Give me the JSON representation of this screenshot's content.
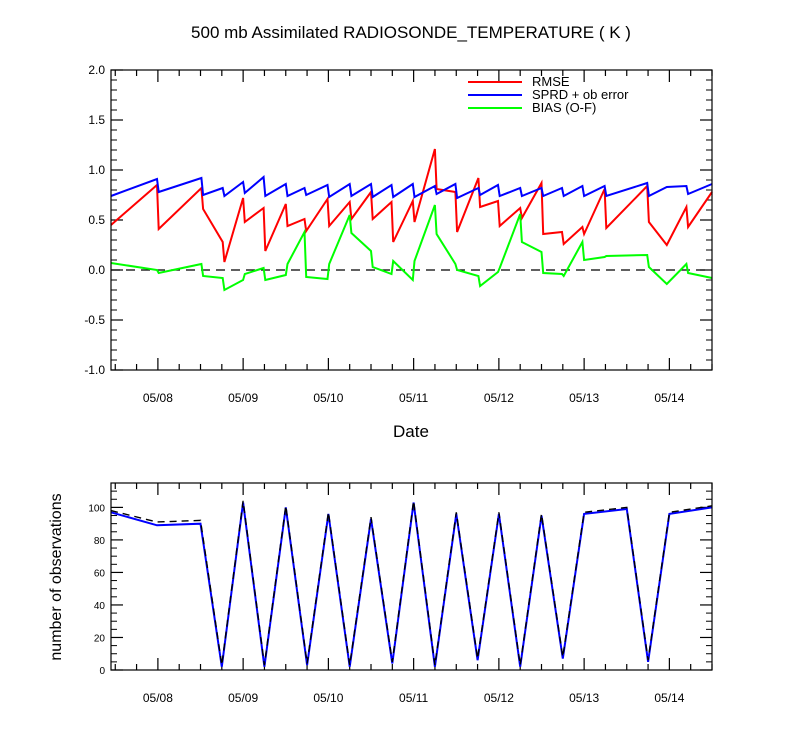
{
  "chart_data": [
    {
      "type": "line",
      "title": "500 mb Assimilated RADIOSONDE_TEMPERATURE ( K )",
      "xlabel": "Date",
      "ylabel": "",
      "xlim": [
        7.45,
        14.5
      ],
      "ylim": [
        -1.0,
        2.0
      ],
      "yticks": [
        -1.0,
        -0.5,
        0.0,
        0.5,
        1.0,
        1.5,
        2.0
      ],
      "ytick_labels": [
        "-1.0",
        "-0.5",
        "0.0",
        "0.5",
        "1.0",
        "1.5",
        "2.0"
      ],
      "xticks": [
        8,
        9,
        10,
        11,
        12,
        13,
        14
      ],
      "xtick_labels": [
        "05/08",
        "05/09",
        "05/10",
        "05/11",
        "05/12",
        "05/13",
        "05/14"
      ],
      "zero_line": "dashed",
      "legend": "top-right",
      "series": [
        {
          "name": "RMSE",
          "color": "#ff0000",
          "points": [
            [
              7.45,
              0.45
            ],
            [
              7.99,
              0.85
            ],
            [
              8.01,
              0.41
            ],
            [
              8.51,
              0.82
            ],
            [
              8.53,
              0.61
            ],
            [
              8.76,
              0.28
            ],
            [
              8.78,
              0.08
            ],
            [
              9.0,
              0.72
            ],
            [
              9.02,
              0.48
            ],
            [
              9.24,
              0.62
            ],
            [
              9.26,
              0.19
            ],
            [
              9.5,
              0.66
            ],
            [
              9.52,
              0.44
            ],
            [
              9.72,
              0.51
            ],
            [
              9.74,
              0.39
            ],
            [
              9.99,
              0.71
            ],
            [
              10.01,
              0.44
            ],
            [
              10.25,
              0.68
            ],
            [
              10.27,
              0.51
            ],
            [
              10.5,
              0.78
            ],
            [
              10.52,
              0.51
            ],
            [
              10.74,
              0.68
            ],
            [
              10.76,
              0.28
            ],
            [
              10.99,
              0.69
            ],
            [
              11.01,
              0.48
            ],
            [
              11.25,
              1.21
            ],
            [
              11.27,
              0.81
            ],
            [
              11.49,
              0.78
            ],
            [
              11.51,
              0.38
            ],
            [
              11.76,
              0.92
            ],
            [
              11.78,
              0.63
            ],
            [
              11.99,
              0.69
            ],
            [
              12.01,
              0.44
            ],
            [
              12.25,
              0.62
            ],
            [
              12.27,
              0.52
            ],
            [
              12.5,
              0.87
            ],
            [
              12.52,
              0.36
            ],
            [
              12.74,
              0.38
            ],
            [
              12.76,
              0.26
            ],
            [
              12.98,
              0.43
            ],
            [
              13.0,
              0.36
            ],
            [
              13.24,
              0.81
            ],
            [
              13.26,
              0.42
            ],
            [
              13.74,
              0.84
            ],
            [
              13.76,
              0.48
            ],
            [
              13.97,
              0.25
            ],
            [
              14.2,
              0.63
            ],
            [
              14.22,
              0.43
            ],
            [
              14.5,
              0.78
            ]
          ]
        },
        {
          "name": "SPRD + ob error",
          "color": "#0000ff",
          "points": [
            [
              7.45,
              0.74
            ],
            [
              7.99,
              0.91
            ],
            [
              8.01,
              0.78
            ],
            [
              8.51,
              0.92
            ],
            [
              8.53,
              0.75
            ],
            [
              8.76,
              0.82
            ],
            [
              8.78,
              0.74
            ],
            [
              9.0,
              0.88
            ],
            [
              9.02,
              0.77
            ],
            [
              9.24,
              0.93
            ],
            [
              9.26,
              0.74
            ],
            [
              9.5,
              0.86
            ],
            [
              9.52,
              0.74
            ],
            [
              9.72,
              0.82
            ],
            [
              9.74,
              0.75
            ],
            [
              9.99,
              0.85
            ],
            [
              10.01,
              0.73
            ],
            [
              10.25,
              0.86
            ],
            [
              10.27,
              0.74
            ],
            [
              10.5,
              0.86
            ],
            [
              10.52,
              0.73
            ],
            [
              10.74,
              0.85
            ],
            [
              10.76,
              0.73
            ],
            [
              10.99,
              0.86
            ],
            [
              11.01,
              0.73
            ],
            [
              11.25,
              0.84
            ],
            [
              11.27,
              0.76
            ],
            [
              11.49,
              0.86
            ],
            [
              11.51,
              0.72
            ],
            [
              11.76,
              0.82
            ],
            [
              11.78,
              0.75
            ],
            [
              11.99,
              0.85
            ],
            [
              12.01,
              0.74
            ],
            [
              12.25,
              0.82
            ],
            [
              12.27,
              0.74
            ],
            [
              12.5,
              0.82
            ],
            [
              12.52,
              0.74
            ],
            [
              12.74,
              0.82
            ],
            [
              12.76,
              0.74
            ],
            [
              12.98,
              0.84
            ],
            [
              13.0,
              0.74
            ],
            [
              13.24,
              0.84
            ],
            [
              13.26,
              0.74
            ],
            [
              13.74,
              0.87
            ],
            [
              13.76,
              0.74
            ],
            [
              13.97,
              0.83
            ],
            [
              14.2,
              0.84
            ],
            [
              14.22,
              0.76
            ],
            [
              14.5,
              0.86
            ]
          ]
        },
        {
          "name": "BIAS (O-F)",
          "color": "#00ff00",
          "points": [
            [
              7.45,
              0.07
            ],
            [
              7.99,
              0.0
            ],
            [
              8.01,
              -0.03
            ],
            [
              8.51,
              0.06
            ],
            [
              8.53,
              -0.06
            ],
            [
              8.76,
              -0.08
            ],
            [
              8.78,
              -0.2
            ],
            [
              9.0,
              -0.1
            ],
            [
              9.02,
              -0.04
            ],
            [
              9.24,
              0.02
            ],
            [
              9.26,
              -0.1
            ],
            [
              9.5,
              -0.05
            ],
            [
              9.52,
              0.06
            ],
            [
              9.72,
              0.38
            ],
            [
              9.74,
              -0.07
            ],
            [
              9.99,
              -0.09
            ],
            [
              10.01,
              0.06
            ],
            [
              10.25,
              0.55
            ],
            [
              10.27,
              0.37
            ],
            [
              10.5,
              0.19
            ],
            [
              10.52,
              0.03
            ],
            [
              10.74,
              -0.04
            ],
            [
              10.76,
              0.09
            ],
            [
              10.99,
              -0.1
            ],
            [
              11.01,
              0.09
            ],
            [
              11.25,
              0.65
            ],
            [
              11.27,
              0.36
            ],
            [
              11.49,
              0.06
            ],
            [
              11.51,
              0.0
            ],
            [
              11.76,
              -0.06
            ],
            [
              11.78,
              -0.16
            ],
            [
              11.99,
              -0.02
            ],
            [
              12.01,
              0.02
            ],
            [
              12.25,
              0.56
            ],
            [
              12.27,
              0.28
            ],
            [
              12.5,
              0.18
            ],
            [
              12.52,
              -0.03
            ],
            [
              12.74,
              -0.04
            ],
            [
              12.76,
              -0.06
            ],
            [
              12.98,
              0.28
            ],
            [
              13.0,
              0.1
            ],
            [
              13.24,
              0.13
            ],
            [
              13.26,
              0.14
            ],
            [
              13.74,
              0.15
            ],
            [
              13.76,
              0.03
            ],
            [
              13.97,
              -0.14
            ],
            [
              14.2,
              0.06
            ],
            [
              14.22,
              -0.03
            ],
            [
              14.5,
              -0.08
            ]
          ]
        }
      ]
    },
    {
      "type": "line",
      "title": "",
      "xlabel": "",
      "ylabel": "number of observations",
      "xlim": [
        7.45,
        14.5
      ],
      "ylim": [
        0,
        115
      ],
      "yticks": [
        0,
        20,
        40,
        60,
        80,
        100
      ],
      "ytick_labels": [
        "0",
        "20",
        "40",
        "60",
        "80",
        "100"
      ],
      "xticks": [
        8,
        9,
        10,
        11,
        12,
        13,
        14
      ],
      "xtick_labels": [
        "05/08",
        "05/09",
        "05/10",
        "05/11",
        "05/12",
        "05/13",
        "05/14"
      ],
      "series": [
        {
          "color": "#0000ff",
          "style": "solid",
          "points": [
            [
              7.45,
              97
            ],
            [
              7.99,
              89
            ],
            [
              8.5,
              90
            ],
            [
              8.75,
              2
            ],
            [
              9.0,
              103
            ],
            [
              9.25,
              2
            ],
            [
              9.5,
              100
            ],
            [
              9.75,
              3
            ],
            [
              10.0,
              96
            ],
            [
              10.25,
              2
            ],
            [
              10.5,
              93
            ],
            [
              10.75,
              4
            ],
            [
              11.0,
              103
            ],
            [
              11.25,
              2
            ],
            [
              11.5,
              96
            ],
            [
              11.75,
              6
            ],
            [
              12.0,
              96
            ],
            [
              12.25,
              2
            ],
            [
              12.5,
              95
            ],
            [
              12.75,
              7
            ],
            [
              13.0,
              96
            ],
            [
              13.5,
              99
            ],
            [
              13.75,
              5
            ],
            [
              14.0,
              96
            ],
            [
              14.5,
              100
            ]
          ]
        },
        {
          "color": "#000000",
          "style": "dashed",
          "points": [
            [
              7.45,
              98
            ],
            [
              7.99,
              91
            ],
            [
              8.5,
              92
            ],
            [
              8.75,
              3
            ],
            [
              9.0,
              104
            ],
            [
              9.25,
              3
            ],
            [
              9.5,
              101
            ],
            [
              9.75,
              4
            ],
            [
              10.0,
              97
            ],
            [
              10.25,
              3
            ],
            [
              10.5,
              94
            ],
            [
              10.75,
              5
            ],
            [
              11.0,
              104
            ],
            [
              11.25,
              3
            ],
            [
              11.5,
              97
            ],
            [
              11.75,
              7
            ],
            [
              12.0,
              97
            ],
            [
              12.25,
              3
            ],
            [
              12.5,
              96
            ],
            [
              12.75,
              8
            ],
            [
              13.0,
              97
            ],
            [
              13.5,
              100
            ],
            [
              13.75,
              6
            ],
            [
              14.0,
              97
            ],
            [
              14.5,
              101
            ]
          ]
        }
      ]
    }
  ]
}
